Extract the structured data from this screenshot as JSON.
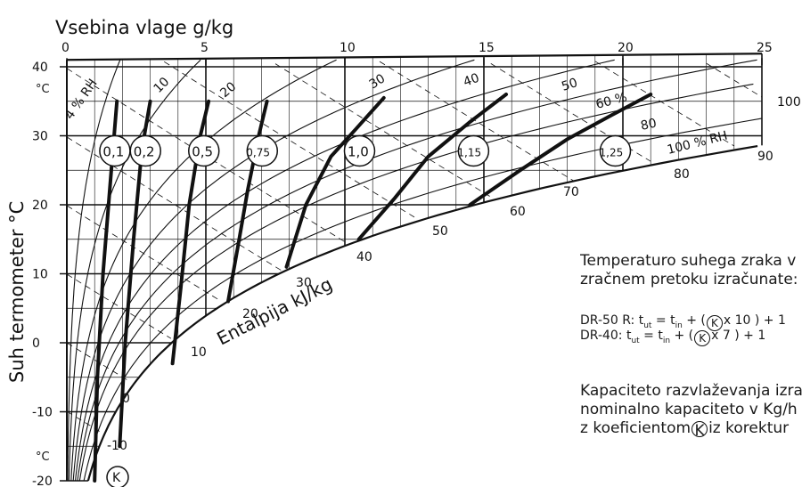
{
  "chart_data": {
    "type": "psychrometric",
    "xlabel": "Vsebina vlage g/kg",
    "ylabel": "Suh termometer °C",
    "enthalpy_label": "Entalpija kJ/kg",
    "x_ticks": [
      0,
      5,
      10,
      15,
      20,
      25
    ],
    "xlim": [
      0,
      25
    ],
    "y_ticks": [
      -20,
      -10,
      0,
      10,
      20,
      30,
      40
    ],
    "ylim": [
      -20,
      40
    ],
    "y_unit_top": "°C",
    "y_unit_bottom": "°C",
    "rh_curves": [
      {
        "rh": 4,
        "label": "4 % RH"
      },
      {
        "rh": 10,
        "label": "10"
      },
      {
        "rh": 20,
        "label": "20"
      },
      {
        "rh": 30,
        "label": "30"
      },
      {
        "rh": 40,
        "label": "40"
      },
      {
        "rh": 50,
        "label": "50"
      },
      {
        "rh": 60,
        "label": "60 %"
      },
      {
        "rh": 80,
        "label": "80"
      },
      {
        "rh": 100,
        "label": "100 % RH"
      }
    ],
    "enthalpy_lines": [
      "0",
      "10",
      "20",
      "30",
      "40",
      "50",
      "60",
      "70",
      "80",
      "90",
      "100"
    ],
    "enthalpy_inner_labels": [
      "-10",
      "0",
      "10",
      "20",
      "30",
      "40",
      "50",
      "60",
      "70"
    ],
    "enthalpy_right_labels": [
      "80",
      "90",
      "100"
    ],
    "k_curves": [
      {
        "label": "0,1",
        "points": [
          [
            1.0,
            -20
          ],
          [
            1.1,
            -5
          ],
          [
            1.3,
            10
          ],
          [
            1.6,
            25
          ],
          [
            1.8,
            35
          ]
        ]
      },
      {
        "label": "0,2",
        "points": [
          [
            1.9,
            -15
          ],
          [
            2.1,
            0
          ],
          [
            2.4,
            15
          ],
          [
            2.7,
            28
          ],
          [
            3.0,
            35
          ]
        ]
      },
      {
        "label": "0,5",
        "points": [
          [
            3.8,
            -3
          ],
          [
            4.1,
            8
          ],
          [
            4.4,
            20
          ],
          [
            4.8,
            30
          ],
          [
            5.1,
            35
          ]
        ]
      },
      {
        "label": "0,75",
        "points": [
          [
            5.8,
            6
          ],
          [
            6.2,
            15
          ],
          [
            6.5,
            22
          ],
          [
            6.9,
            30
          ],
          [
            7.2,
            35
          ]
        ]
      },
      {
        "label": "1,0",
        "points": [
          [
            7.9,
            11
          ],
          [
            8.6,
            20
          ],
          [
            9.5,
            27
          ],
          [
            10.4,
            31
          ],
          [
            11.4,
            35.5
          ]
        ]
      },
      {
        "label": "1,15",
        "points": [
          [
            10.5,
            15
          ],
          [
            11.8,
            21
          ],
          [
            13.0,
            27
          ],
          [
            14.5,
            32
          ],
          [
            15.8,
            36
          ]
        ]
      },
      {
        "label": "1,25",
        "points": [
          [
            14.5,
            20
          ],
          [
            16.3,
            25
          ],
          [
            18.0,
            29.5
          ],
          [
            19.6,
            33
          ],
          [
            21.0,
            36
          ]
        ]
      }
    ],
    "k_marker": "K",
    "rh_line_label": "% RH"
  },
  "side_text": {
    "para1_line1": "Temperaturo suhega zraka v pri",
    "para1_line2": "zračnem pretoku izračunate:",
    "formula1_prefix": "DR-50 R: t",
    "formula1_sub1": "ut",
    "formula1_mid": " = t",
    "formula1_sub2": "in",
    "formula1_tail": " + (",
    "formula1_k": "K",
    "formula1_end": "x 10 ) + 1",
    "formula2_prefix": "DR-40: t",
    "formula2_sub1": "ut",
    "formula2_mid": " = t",
    "formula2_sub2": "in",
    "formula2_tail": " + (",
    "formula2_k": "K",
    "formula2_end": "x 7 ) + 1",
    "para2_line1": "Kapaciteto razvlaževanja izrač",
    "para2_line2": "nominalno kapaciteto v Kg/h",
    "para2_line3_prefix": "z koeficientom",
    "para2_line3_k": "K",
    "para2_line3_suffix": "iz korektur"
  }
}
